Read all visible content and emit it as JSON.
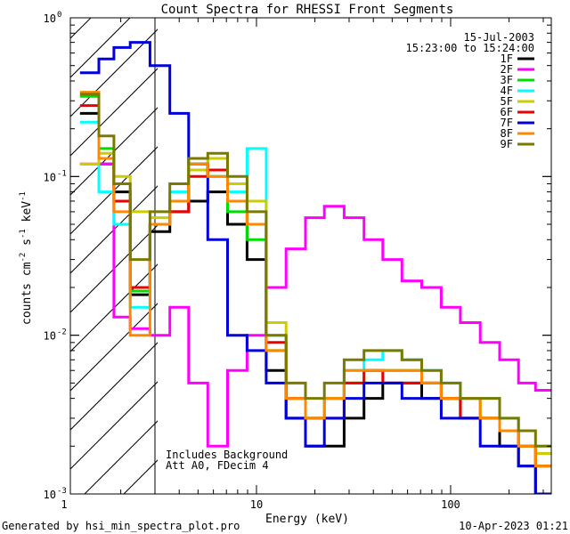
{
  "chart_data": {
    "type": "line",
    "title": "Count Spectra for RHESSI Front Segments",
    "xlabel": "Energy (keV)",
    "ylabel": "counts cm",
    "ylabel_parts": [
      "counts cm",
      "-2",
      " s",
      "-1",
      " keV",
      "-1"
    ],
    "x_scale": "log",
    "y_scale": "log",
    "xlim": [
      1.1,
      330
    ],
    "ylim": [
      0.001,
      1
    ],
    "x_ticks": [
      {
        "value": 10,
        "label": "10"
      },
      {
        "value": 100,
        "label": "100"
      }
    ],
    "y_ticks": [
      {
        "value": 1,
        "label": "10",
        "exp": "0"
      },
      {
        "value": 0.1,
        "label": "10",
        "exp": "-1"
      },
      {
        "value": 0.01,
        "label": "10",
        "exp": "-2"
      },
      {
        "value": 0.001,
        "label": "10",
        "exp": "-3"
      }
    ],
    "shaded_region": {
      "x_from": 1.1,
      "x_to": 3.0
    },
    "date": "15-Jul-2003",
    "time_range": "15:23:00 to 15:24:00",
    "legend_position": "top-right",
    "annotations": [
      "Includes Background",
      "Att A0, FDecim 4"
    ],
    "footer_left": "Generated by hsi_min_spectra_plot.pro",
    "footer_right": "10-Apr-2023 01:21",
    "series": [
      {
        "name": "1F",
        "color": "#000000",
        "x": [
          1.4,
          1.7,
          2.0,
          2.5,
          3.2,
          4.0,
          5.0,
          6.3,
          8.0,
          10.0,
          12.6,
          16,
          20,
          25,
          32,
          40,
          50,
          63,
          80,
          100,
          126,
          160,
          200,
          250,
          300
        ],
        "y": [
          0.25,
          0.12,
          0.08,
          0.018,
          0.045,
          0.06,
          0.07,
          0.08,
          0.05,
          0.03,
          0.006,
          0.003,
          0.002,
          0.002,
          0.003,
          0.004,
          0.005,
          0.005,
          0.004,
          0.004,
          0.003,
          0.003,
          0.002,
          0.0015,
          0.001
        ]
      },
      {
        "name": "2F",
        "color": "#ff00ff",
        "x": [
          1.4,
          1.7,
          2.0,
          2.5,
          3.2,
          4.0,
          5.0,
          6.3,
          8.0,
          10.0,
          12.6,
          16,
          20,
          25,
          32,
          40,
          50,
          63,
          80,
          100,
          126,
          160,
          200,
          250,
          300
        ],
        "y": [
          0.12,
          0.12,
          0.013,
          0.011,
          0.01,
          0.015,
          0.005,
          0.002,
          0.006,
          0.01,
          0.02,
          0.035,
          0.055,
          0.065,
          0.055,
          0.04,
          0.03,
          0.022,
          0.02,
          0.015,
          0.012,
          0.009,
          0.007,
          0.005,
          0.0045
        ]
      },
      {
        "name": "3F",
        "color": "#00dd00",
        "x": [
          1.4,
          1.7,
          2.0,
          2.5,
          3.2,
          4.0,
          5.0,
          6.3,
          8.0,
          10.0,
          12.6,
          16,
          20,
          25,
          32,
          40,
          50,
          63,
          80,
          100,
          126,
          160,
          200,
          250,
          300
        ],
        "y": [
          0.32,
          0.15,
          0.07,
          0.019,
          0.05,
          0.07,
          0.12,
          0.1,
          0.06,
          0.04,
          0.008,
          0.004,
          0.003,
          0.004,
          0.005,
          0.006,
          0.006,
          0.006,
          0.005,
          0.004,
          0.004,
          0.003,
          0.0025,
          0.002,
          0.0015
        ]
      },
      {
        "name": "4F",
        "color": "#00ffff",
        "x": [
          1.4,
          1.7,
          2.0,
          2.5,
          3.2,
          4.0,
          5.0,
          6.3,
          8.0,
          10.0,
          12.6,
          16,
          20,
          25,
          32,
          40,
          50,
          63,
          80,
          100,
          126,
          160,
          200,
          250,
          300
        ],
        "y": [
          0.22,
          0.08,
          0.05,
          0.015,
          0.05,
          0.08,
          0.13,
          0.1,
          0.08,
          0.15,
          0.01,
          0.004,
          0.003,
          0.004,
          0.006,
          0.007,
          0.008,
          0.007,
          0.006,
          0.005,
          0.004,
          0.004,
          0.003,
          0.002,
          0.002
        ]
      },
      {
        "name": "5F",
        "color": "#cccc00",
        "x": [
          1.4,
          1.7,
          2.0,
          2.5,
          3.2,
          4.0,
          5.0,
          6.3,
          8.0,
          10.0,
          12.6,
          16,
          20,
          25,
          32,
          40,
          50,
          63,
          80,
          100,
          126,
          160,
          200,
          250,
          300
        ],
        "y": [
          0.12,
          0.14,
          0.1,
          0.06,
          0.055,
          0.07,
          0.11,
          0.13,
          0.09,
          0.07,
          0.012,
          0.005,
          0.003,
          0.004,
          0.005,
          0.006,
          0.006,
          0.006,
          0.005,
          0.004,
          0.004,
          0.003,
          0.0025,
          0.002,
          0.0018
        ]
      },
      {
        "name": "6F",
        "color": "#ee0000",
        "x": [
          1.4,
          1.7,
          2.0,
          2.5,
          3.2,
          4.0,
          5.0,
          6.3,
          8.0,
          10.0,
          12.6,
          16,
          20,
          25,
          32,
          40,
          50,
          63,
          80,
          100,
          126,
          160,
          200,
          250,
          300
        ],
        "y": [
          0.28,
          0.13,
          0.07,
          0.02,
          0.05,
          0.06,
          0.1,
          0.11,
          0.07,
          0.05,
          0.009,
          0.004,
          0.003,
          0.003,
          0.005,
          0.006,
          0.005,
          0.005,
          0.005,
          0.004,
          0.003,
          0.003,
          0.0025,
          0.002,
          0.0015
        ]
      },
      {
        "name": "7F",
        "color": "#0000dd",
        "x": [
          1.4,
          1.7,
          2.0,
          2.5,
          3.2,
          4.0,
          5.0,
          6.3,
          8.0,
          10.0,
          12.6,
          16,
          20,
          25,
          32,
          40,
          50,
          63,
          80,
          100,
          126,
          160,
          200,
          250,
          300
        ],
        "y": [
          0.45,
          0.55,
          0.65,
          0.7,
          0.5,
          0.25,
          0.12,
          0.04,
          0.01,
          0.008,
          0.005,
          0.003,
          0.002,
          0.003,
          0.004,
          0.005,
          0.005,
          0.004,
          0.004,
          0.003,
          0.003,
          0.002,
          0.002,
          0.0015,
          0.001
        ]
      },
      {
        "name": "8F",
        "color": "#ff8800",
        "x": [
          1.4,
          1.7,
          2.0,
          2.5,
          3.2,
          4.0,
          5.0,
          6.3,
          8.0,
          10.0,
          12.6,
          16,
          20,
          25,
          32,
          40,
          50,
          63,
          80,
          100,
          126,
          160,
          200,
          250,
          300
        ],
        "y": [
          0.34,
          0.13,
          0.06,
          0.01,
          0.05,
          0.07,
          0.12,
          0.1,
          0.07,
          0.05,
          0.008,
          0.004,
          0.003,
          0.004,
          0.006,
          0.006,
          0.006,
          0.006,
          0.005,
          0.004,
          0.004,
          0.003,
          0.0025,
          0.002,
          0.0015
        ]
      },
      {
        "name": "9F",
        "color": "#7a7a00",
        "x": [
          1.4,
          1.7,
          2.0,
          2.5,
          3.2,
          4.0,
          5.0,
          6.3,
          8.0,
          10.0,
          12.6,
          16,
          20,
          25,
          32,
          40,
          50,
          63,
          80,
          100,
          126,
          160,
          200,
          250,
          300
        ],
        "y": [
          0.33,
          0.18,
          0.09,
          0.03,
          0.06,
          0.09,
          0.13,
          0.14,
          0.1,
          0.06,
          0.01,
          0.005,
          0.004,
          0.005,
          0.007,
          0.008,
          0.008,
          0.007,
          0.006,
          0.005,
          0.004,
          0.004,
          0.003,
          0.0025,
          0.002
        ]
      }
    ]
  }
}
